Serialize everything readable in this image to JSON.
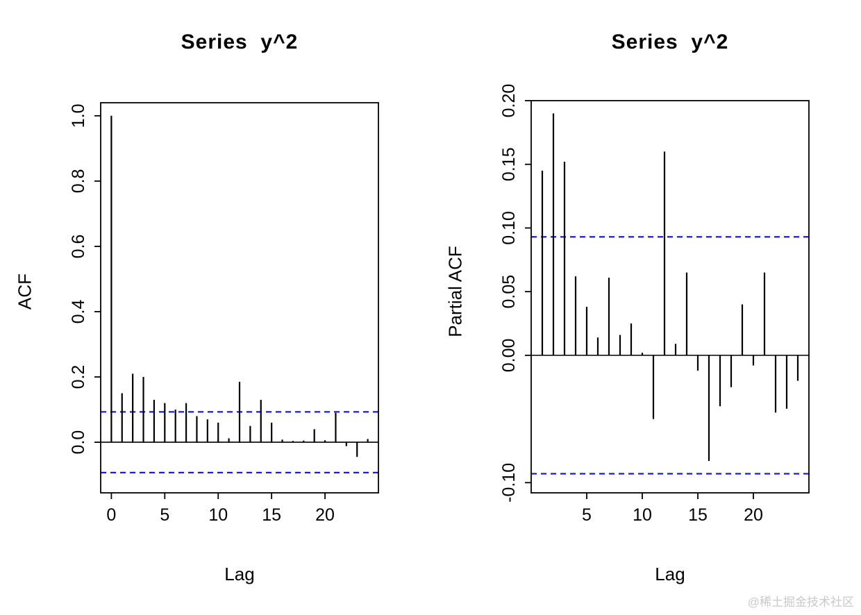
{
  "watermark": "@稀土掘金技术社区",
  "chart_data": [
    {
      "type": "bar",
      "title": "Series  y^2",
      "xlabel": "Lag",
      "ylabel": "ACF",
      "x": [
        0,
        1,
        2,
        3,
        4,
        5,
        6,
        7,
        8,
        9,
        10,
        11,
        12,
        13,
        14,
        15,
        16,
        17,
        18,
        19,
        20,
        21,
        22,
        23,
        24
      ],
      "values": [
        1.0,
        0.15,
        0.21,
        0.2,
        0.13,
        0.12,
        0.1,
        0.12,
        0.08,
        0.07,
        0.06,
        0.012,
        0.185,
        0.05,
        0.13,
        0.06,
        0.008,
        0.004,
        0.005,
        0.04,
        0.006,
        0.09,
        -0.012,
        -0.045,
        0.01
      ],
      "xlim": [
        -1,
        25
      ],
      "ylim": [
        -0.155,
        1.04
      ],
      "xticks": [
        0,
        5,
        10,
        15,
        20
      ],
      "yticks": [
        0.0,
        0.2,
        0.4,
        0.6,
        0.8,
        1.0
      ],
      "ytick_labels": [
        "0.0",
        "0.2",
        "0.4",
        "0.6",
        "0.8",
        "1.0"
      ],
      "conf_lines": [
        0.093,
        -0.093
      ],
      "conf_color": "#1c1ccd",
      "bar_color": "#000000",
      "legend": "none",
      "grid": false
    },
    {
      "type": "bar",
      "title": "Series  y^2",
      "xlabel": "Lag",
      "ylabel": "Partial ACF",
      "x": [
        1,
        2,
        3,
        4,
        5,
        6,
        7,
        8,
        9,
        10,
        11,
        12,
        13,
        14,
        15,
        16,
        17,
        18,
        19,
        20,
        21,
        22,
        23,
        24
      ],
      "values": [
        0.145,
        0.19,
        0.152,
        0.062,
        0.038,
        0.014,
        0.061,
        0.016,
        0.025,
        0.002,
        -0.05,
        0.16,
        0.009,
        0.065,
        -0.012,
        -0.083,
        -0.04,
        -0.025,
        0.04,
        -0.008,
        0.065,
        -0.045,
        -0.042,
        -0.02
      ],
      "xlim": [
        0,
        25
      ],
      "ylim": [
        -0.108,
        0.2
      ],
      "xticks": [
        5,
        10,
        15,
        20
      ],
      "yticks": [
        -0.1,
        0.0,
        0.05,
        0.1,
        0.15,
        0.2
      ],
      "ytick_labels": [
        "-0.10",
        "0.00",
        "0.05",
        "0.10",
        "0.15",
        "0.20"
      ],
      "conf_lines": [
        0.093,
        -0.093
      ],
      "conf_color": "#1c1ccd",
      "bar_color": "#000000",
      "legend": "none",
      "grid": false
    }
  ]
}
